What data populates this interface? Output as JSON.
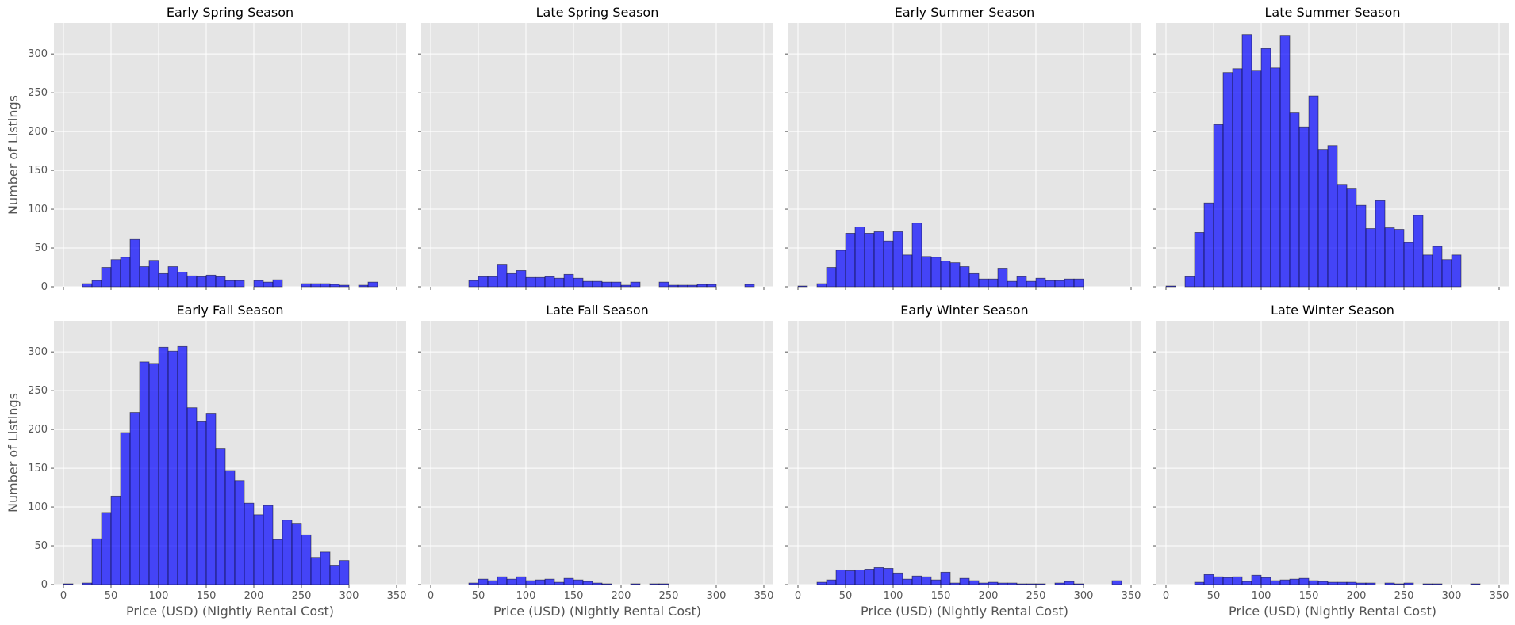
{
  "chart_data": {
    "type": "bar",
    "layout": "2x4 grid of histograms, shared axes",
    "bin_width": 10,
    "xlim": [
      -10,
      360
    ],
    "ylim": [
      0,
      340
    ],
    "xticks": [
      0,
      50,
      100,
      150,
      200,
      250,
      300,
      350
    ],
    "yticks": [
      0,
      50,
      100,
      150,
      200,
      250,
      300
    ],
    "xlabel": "Price (USD) (Nightly Rental Cost)",
    "ylabel": "Number of Listings",
    "grid": true,
    "colors": {
      "bar_fill": "#0000ff",
      "bar_alpha": 0.7,
      "bar_edge": "#000000",
      "panel_bg": "#e5e5e5",
      "grid": "#ffffff"
    },
    "panels": [
      {
        "title": "Early Spring Season",
        "bins": [
          0,
          10,
          20,
          30,
          40,
          50,
          60,
          70,
          80,
          90,
          100,
          110,
          120,
          130,
          140,
          150,
          160,
          170,
          180,
          190,
          200,
          210,
          220,
          230,
          240,
          250,
          260,
          270,
          280,
          290,
          300,
          310,
          320,
          330,
          340
        ],
        "values": [
          0,
          0,
          4,
          8,
          25,
          35,
          38,
          61,
          26,
          34,
          17,
          26,
          19,
          14,
          13,
          15,
          13,
          8,
          8,
          0,
          8,
          6,
          9,
          0,
          0,
          4,
          4,
          4,
          3,
          2,
          0,
          2,
          6,
          0,
          0
        ]
      },
      {
        "title": "Late Spring Season",
        "bins": [
          0,
          10,
          20,
          30,
          40,
          50,
          60,
          70,
          80,
          90,
          100,
          110,
          120,
          130,
          140,
          150,
          160,
          170,
          180,
          190,
          200,
          210,
          220,
          230,
          240,
          250,
          260,
          270,
          280,
          290,
          300,
          310,
          320,
          330,
          340
        ],
        "values": [
          0,
          0,
          0,
          0,
          8,
          13,
          13,
          29,
          17,
          21,
          12,
          12,
          13,
          11,
          16,
          11,
          7,
          7,
          6,
          6,
          2,
          6,
          0,
          0,
          6,
          2,
          2,
          2,
          3,
          3,
          0,
          0,
          0,
          3,
          0
        ]
      },
      {
        "title": "Early Summer Season",
        "bins": [
          0,
          10,
          20,
          30,
          40,
          50,
          60,
          70,
          80,
          90,
          100,
          110,
          120,
          130,
          140,
          150,
          160,
          170,
          180,
          190,
          200,
          210,
          220,
          230,
          240,
          250,
          260,
          270,
          280,
          290,
          300,
          310,
          320,
          330,
          340
        ],
        "values": [
          1,
          0,
          4,
          25,
          47,
          69,
          77,
          69,
          71,
          59,
          71,
          41,
          82,
          39,
          38,
          33,
          31,
          26,
          17,
          10,
          10,
          24,
          7,
          13,
          7,
          11,
          8,
          8,
          10,
          10,
          0,
          0,
          0,
          0,
          0
        ]
      },
      {
        "title": "Late Summer Season",
        "bins": [
          0,
          10,
          20,
          30,
          40,
          50,
          60,
          70,
          80,
          90,
          100,
          110,
          120,
          130,
          140,
          150,
          160,
          170,
          180,
          190,
          200,
          210,
          220,
          230,
          240,
          250,
          260,
          270,
          280,
          290,
          300,
          310,
          320,
          330,
          340
        ],
        "values": [
          1,
          0,
          13,
          70,
          108,
          209,
          276,
          281,
          325,
          279,
          307,
          282,
          324,
          224,
          206,
          246,
          177,
          182,
          132,
          127,
          105,
          75,
          111,
          76,
          74,
          57,
          92,
          41,
          52,
          35,
          41,
          0,
          0,
          0,
          0
        ]
      },
      {
        "title": "Early Fall Season",
        "bins": [
          0,
          10,
          20,
          30,
          40,
          50,
          60,
          70,
          80,
          90,
          100,
          110,
          120,
          130,
          140,
          150,
          160,
          170,
          180,
          190,
          200,
          210,
          220,
          230,
          240,
          250,
          260,
          270,
          280,
          290,
          300,
          310,
          320,
          330,
          340
        ],
        "values": [
          1,
          0,
          2,
          59,
          93,
          114,
          196,
          222,
          287,
          285,
          306,
          301,
          307,
          228,
          210,
          220,
          175,
          147,
          134,
          105,
          90,
          102,
          58,
          83,
          79,
          64,
          35,
          42,
          25,
          31,
          0,
          0,
          0,
          0,
          0
        ]
      },
      {
        "title": "Late Fall Season",
        "bins": [
          0,
          10,
          20,
          30,
          40,
          50,
          60,
          70,
          80,
          90,
          100,
          110,
          120,
          130,
          140,
          150,
          160,
          170,
          180,
          190,
          200,
          210,
          220,
          230,
          240,
          250,
          260,
          270,
          280,
          290,
          300,
          310,
          320,
          330,
          340
        ],
        "values": [
          0,
          0,
          0,
          0,
          2,
          7,
          5,
          10,
          7,
          10,
          5,
          6,
          7,
          3,
          8,
          6,
          4,
          2,
          1,
          0,
          0,
          1,
          0,
          1,
          1,
          0,
          0,
          0,
          0,
          0,
          0,
          0,
          0,
          0,
          0
        ]
      },
      {
        "title": "Early Winter Season",
        "bins": [
          0,
          10,
          20,
          30,
          40,
          50,
          60,
          70,
          80,
          90,
          100,
          110,
          120,
          130,
          140,
          150,
          160,
          170,
          180,
          190,
          200,
          210,
          220,
          230,
          240,
          250,
          260,
          270,
          280,
          290,
          300,
          310,
          320,
          330,
          340
        ],
        "values": [
          0,
          0,
          3,
          6,
          19,
          18,
          19,
          20,
          22,
          21,
          15,
          7,
          11,
          10,
          6,
          16,
          2,
          8,
          5,
          2,
          3,
          2,
          2,
          1,
          1,
          1,
          0,
          2,
          4,
          1,
          0,
          0,
          0,
          5,
          0
        ]
      },
      {
        "title": "Late Winter Season",
        "bins": [
          0,
          10,
          20,
          30,
          40,
          50,
          60,
          70,
          80,
          90,
          100,
          110,
          120,
          130,
          140,
          150,
          160,
          170,
          180,
          190,
          200,
          210,
          220,
          230,
          240,
          250,
          260,
          270,
          280,
          290,
          300,
          310,
          320,
          330,
          340
        ],
        "values": [
          0,
          0,
          0,
          3,
          13,
          10,
          9,
          10,
          4,
          12,
          9,
          5,
          6,
          7,
          8,
          5,
          4,
          3,
          3,
          3,
          2,
          2,
          0,
          2,
          1,
          2,
          0,
          1,
          1,
          0,
          0,
          0,
          1,
          0,
          0
        ]
      }
    ]
  }
}
